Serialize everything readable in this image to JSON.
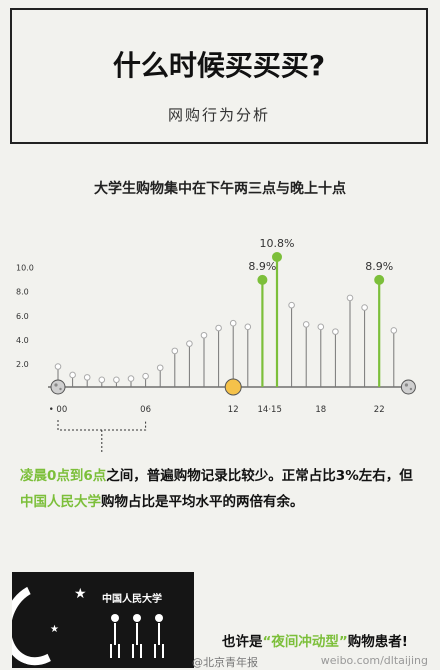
{
  "header": {
    "title": "什么时候买买买?",
    "subtitle": "网购行为分析"
  },
  "chart_title": "大学生购物集中在下午两三点与晚上十点",
  "chart_data": {
    "type": "lollipop",
    "title": "大学生购物集中在下午两三点与晚上十点",
    "x": [
      0,
      1,
      2,
      3,
      4,
      5,
      6,
      7,
      8,
      9,
      10,
      11,
      12,
      13,
      14,
      15,
      16,
      17,
      18,
      19,
      20,
      21,
      22,
      23
    ],
    "values": [
      1.7,
      1.0,
      0.8,
      0.6,
      0.6,
      0.7,
      0.9,
      1.6,
      3.0,
      3.6,
      4.3,
      4.9,
      5.3,
      5.0,
      8.9,
      10.8,
      6.8,
      5.2,
      5.0,
      4.6,
      7.4,
      6.6,
      8.9,
      4.7
    ],
    "highlight": [
      14,
      15,
      22
    ],
    "data_labels": [
      {
        "x": 14,
        "text": "8.9%"
      },
      {
        "x": 15,
        "text": "10.8%"
      },
      {
        "x": 22,
        "text": "8.9%"
      }
    ],
    "y_ticks": [
      "2.0",
      "4.0",
      "6.0",
      "8.0",
      "10.0"
    ],
    "x_tick_labels": [
      "• 00",
      "06",
      "12",
      "14·15",
      "18",
      "22"
    ],
    "ylim": [
      0,
      11
    ],
    "grid": false,
    "colors": {
      "default": "#c8c8c8",
      "highlight": "#7cbf3a",
      "noon_sun": "#f5c24a",
      "midnight": "#888888"
    }
  },
  "body": {
    "text_a": "凌晨0点到6点",
    "text_b": "之间，普遍购物记录比较少。正常占比3%左右，但",
    "text_c": "中国人民大学",
    "text_d": "购物占比是平均水平的两倍有余。"
  },
  "bottom": {
    "school_label": "中国人民大学",
    "tag_a": "也许是",
    "tag_b": "“夜间冲动型”",
    "tag_c": "购物患者!",
    "watermark_left": "@北京青年报",
    "watermark_right": "weibo.com/dltaijing"
  }
}
